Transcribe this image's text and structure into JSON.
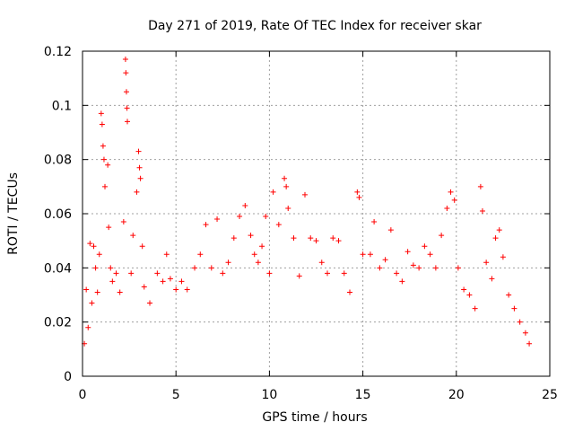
{
  "chart_data": {
    "type": "scatter",
    "title": "Day 271 of 2019, Rate Of TEC Index for receiver skar",
    "xlabel": "GPS time / hours",
    "ylabel": "ROTI / TECUs",
    "xlim": [
      0,
      25
    ],
    "ylim": [
      0,
      0.12
    ],
    "xticks": [
      0,
      5,
      10,
      15,
      20,
      25
    ],
    "xtick_labels": [
      "0",
      "5",
      "10",
      "15",
      "20",
      "25"
    ],
    "yticks": [
      0,
      0.02,
      0.04,
      0.06,
      0.08,
      0.1,
      0.12
    ],
    "ytick_labels": [
      "0",
      "0.02",
      "0.04",
      "0.06",
      "0.08",
      "0.1",
      "0.12"
    ],
    "grid": true,
    "marker": "+",
    "color": "#ff0000",
    "series": [
      {
        "name": "ROTI",
        "sampled_points": [
          [
            0.1,
            0.012
          ],
          [
            0.2,
            0.032
          ],
          [
            0.3,
            0.018
          ],
          [
            0.4,
            0.049
          ],
          [
            0.5,
            0.027
          ],
          [
            0.6,
            0.048
          ],
          [
            0.7,
            0.04
          ],
          [
            0.8,
            0.031
          ],
          [
            0.9,
            0.045
          ],
          [
            1.0,
            0.097
          ],
          [
            1.05,
            0.093
          ],
          [
            1.1,
            0.085
          ],
          [
            1.15,
            0.08
          ],
          [
            1.2,
            0.07
          ],
          [
            1.35,
            0.078
          ],
          [
            1.4,
            0.055
          ],
          [
            1.5,
            0.04
          ],
          [
            1.6,
            0.035
          ],
          [
            1.8,
            0.038
          ],
          [
            2.0,
            0.031
          ],
          [
            2.2,
            0.057
          ],
          [
            2.3,
            0.117
          ],
          [
            2.32,
            0.112
          ],
          [
            2.35,
            0.105
          ],
          [
            2.38,
            0.099
          ],
          [
            2.4,
            0.094
          ],
          [
            2.6,
            0.038
          ],
          [
            2.7,
            0.052
          ],
          [
            2.9,
            0.068
          ],
          [
            3.0,
            0.083
          ],
          [
            3.05,
            0.077
          ],
          [
            3.1,
            0.073
          ],
          [
            3.2,
            0.048
          ],
          [
            3.3,
            0.033
          ],
          [
            3.6,
            0.027
          ],
          [
            4.0,
            0.038
          ],
          [
            4.3,
            0.035
          ],
          [
            4.5,
            0.045
          ],
          [
            4.7,
            0.036
          ],
          [
            5.0,
            0.032
          ],
          [
            5.3,
            0.035
          ],
          [
            5.6,
            0.032
          ],
          [
            6.0,
            0.04
          ],
          [
            6.3,
            0.045
          ],
          [
            6.6,
            0.056
          ],
          [
            6.9,
            0.04
          ],
          [
            7.2,
            0.058
          ],
          [
            7.5,
            0.038
          ],
          [
            7.8,
            0.042
          ],
          [
            8.1,
            0.051
          ],
          [
            8.4,
            0.059
          ],
          [
            8.7,
            0.063
          ],
          [
            9.0,
            0.052
          ],
          [
            9.2,
            0.045
          ],
          [
            9.4,
            0.042
          ],
          [
            9.6,
            0.048
          ],
          [
            9.8,
            0.059
          ],
          [
            10.0,
            0.038
          ],
          [
            10.2,
            0.068
          ],
          [
            10.5,
            0.056
          ],
          [
            10.8,
            0.073
          ],
          [
            10.9,
            0.07
          ],
          [
            11.0,
            0.062
          ],
          [
            11.3,
            0.051
          ],
          [
            11.6,
            0.037
          ],
          [
            11.9,
            0.067
          ],
          [
            12.2,
            0.051
          ],
          [
            12.5,
            0.05
          ],
          [
            12.8,
            0.042
          ],
          [
            13.1,
            0.038
          ],
          [
            13.4,
            0.051
          ],
          [
            13.7,
            0.05
          ],
          [
            14.0,
            0.038
          ],
          [
            14.3,
            0.031
          ],
          [
            14.7,
            0.068
          ],
          [
            14.8,
            0.066
          ],
          [
            15.0,
            0.045
          ],
          [
            15.4,
            0.045
          ],
          [
            15.6,
            0.057
          ],
          [
            15.9,
            0.04
          ],
          [
            16.2,
            0.043
          ],
          [
            16.5,
            0.054
          ],
          [
            16.8,
            0.038
          ],
          [
            17.1,
            0.035
          ],
          [
            17.4,
            0.046
          ],
          [
            17.7,
            0.041
          ],
          [
            18.0,
            0.04
          ],
          [
            18.3,
            0.048
          ],
          [
            18.6,
            0.045
          ],
          [
            18.9,
            0.04
          ],
          [
            19.2,
            0.052
          ],
          [
            19.5,
            0.062
          ],
          [
            19.7,
            0.068
          ],
          [
            19.9,
            0.065
          ],
          [
            20.1,
            0.04
          ],
          [
            20.4,
            0.032
          ],
          [
            20.7,
            0.03
          ],
          [
            21.0,
            0.025
          ],
          [
            21.3,
            0.07
          ],
          [
            21.4,
            0.061
          ],
          [
            21.6,
            0.042
          ],
          [
            21.9,
            0.036
          ],
          [
            22.1,
            0.051
          ],
          [
            22.3,
            0.054
          ],
          [
            22.5,
            0.044
          ],
          [
            22.8,
            0.03
          ],
          [
            23.1,
            0.025
          ],
          [
            23.4,
            0.02
          ],
          [
            23.7,
            0.016
          ],
          [
            23.9,
            0.012
          ]
        ]
      }
    ]
  }
}
